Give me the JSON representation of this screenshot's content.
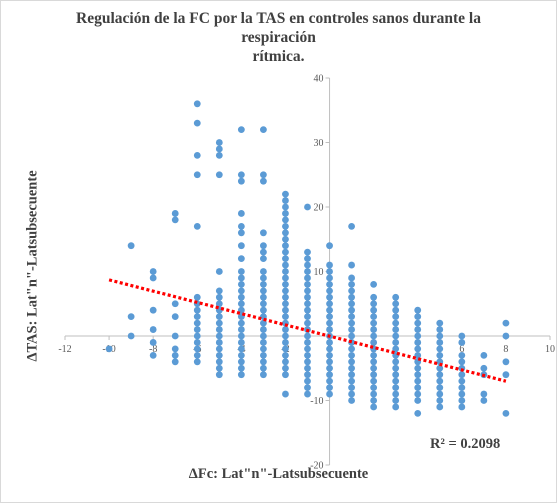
{
  "chart_data": {
    "type": "scatter",
    "title_line1": "Regulación de la  FC por la TAS en controles sanos durante la respiración",
    "title_line2": "rítmica.",
    "xlabel": "ΔFc: Lat\"n\"-Latsubsecuente",
    "ylabel": "ΔTAS:  Lat\"n\"-Latsubsecuente",
    "xlim": [
      -12,
      10
    ],
    "ylim": [
      -20,
      40
    ],
    "x_ticks": [
      "-12",
      "-10",
      "-8",
      "-6",
      "-4",
      "-2",
      "0",
      "2",
      "4",
      "6",
      "8",
      "10"
    ],
    "y_ticks": [
      "-20",
      "-10",
      "0",
      "10",
      "20",
      "30",
      "40"
    ],
    "grid": false,
    "marker_color": "#5b9bd5",
    "trendline": {
      "type": "linear",
      "color": "#ff0000",
      "style": "dotted",
      "x_range": [
        -10,
        8
      ],
      "y_at_start": 8.7,
      "y_at_end": -7.0
    },
    "r_squared_label": "R² = 0.2098",
    "columns": [
      {
        "x": -10,
        "ys": [
          -2
        ]
      },
      {
        "x": -9,
        "ys": [
          14,
          3,
          0
        ]
      },
      {
        "x": -8,
        "ys": [
          10,
          9,
          4,
          1,
          -1,
          -3
        ]
      },
      {
        "x": -7,
        "ys": [
          19,
          18,
          5,
          3,
          0,
          -2,
          -3,
          -4
        ]
      },
      {
        "x": -6,
        "ys": [
          36,
          33,
          28,
          25,
          17,
          6,
          5,
          4,
          3,
          2,
          1,
          0,
          -1,
          -2,
          -3,
          -4
        ]
      },
      {
        "x": -5,
        "ys": [
          30,
          29,
          28,
          25,
          10,
          7,
          6,
          5,
          4,
          3,
          2,
          1,
          0,
          -1,
          -2,
          -3,
          -4,
          -5,
          -6
        ]
      },
      {
        "x": -4,
        "ys": [
          32,
          25,
          24,
          19,
          17,
          16,
          14,
          12,
          10,
          9,
          8,
          7,
          6,
          5,
          4,
          3,
          2,
          1,
          0,
          -1,
          -2,
          -3,
          -4,
          -5,
          -6
        ]
      },
      {
        "x": -3,
        "ys": [
          32,
          25,
          24,
          16,
          14,
          13,
          12,
          10,
          9,
          8,
          7,
          6,
          5,
          4,
          3,
          2,
          1,
          0,
          -1,
          -2,
          -3,
          -4,
          -5,
          -6
        ]
      },
      {
        "x": -2,
        "ys": [
          22,
          21,
          20,
          19,
          18,
          17,
          16,
          15,
          14,
          13,
          12,
          11,
          10,
          9,
          8,
          7,
          6,
          5,
          4,
          3,
          2,
          1,
          0,
          -1,
          -2,
          -3,
          -4,
          -5,
          -6,
          -9
        ]
      },
      {
        "x": -1,
        "ys": [
          20,
          13,
          12,
          11,
          10,
          9,
          8,
          7,
          6,
          5,
          4,
          3,
          2,
          1,
          0,
          -1,
          -2,
          -3,
          -4,
          -5,
          -6,
          -7,
          -8,
          -9
        ]
      },
      {
        "x": 0,
        "ys": [
          14,
          11,
          10,
          9,
          8,
          7,
          6,
          5,
          4,
          3,
          2,
          1,
          0,
          -1,
          -2,
          -3,
          -4,
          -5,
          -6,
          -7,
          -8,
          -9
        ]
      },
      {
        "x": 1,
        "ys": [
          17,
          11,
          9,
          8,
          7,
          6,
          5,
          4,
          3,
          2,
          1,
          0,
          -1,
          -2,
          -3,
          -4,
          -5,
          -6,
          -7,
          -8,
          -9,
          -10
        ]
      },
      {
        "x": 2,
        "ys": [
          8,
          6,
          5,
          4,
          3,
          2,
          1,
          0,
          -1,
          -2,
          -3,
          -4,
          -5,
          -6,
          -7,
          -8,
          -9,
          -10,
          -11
        ]
      },
      {
        "x": 3,
        "ys": [
          6,
          5,
          4,
          3,
          2,
          1,
          0,
          -1,
          -2,
          -3,
          -4,
          -5,
          -6,
          -7,
          -8,
          -9,
          -10,
          -11
        ]
      },
      {
        "x": 4,
        "ys": [
          4,
          3,
          2,
          1,
          0,
          -1,
          -2,
          -3,
          -4,
          -5,
          -6,
          -7,
          -8,
          -9,
          -10,
          -12
        ]
      },
      {
        "x": 5,
        "ys": [
          2,
          1,
          0,
          -1,
          -2,
          -3,
          -4,
          -5,
          -6,
          -7,
          -8,
          -9,
          -10,
          -11
        ]
      },
      {
        "x": 6,
        "ys": [
          0,
          -1,
          -3,
          -4,
          -5,
          -6,
          -7,
          -8,
          -9,
          -10,
          -11
        ]
      },
      {
        "x": 7,
        "ys": [
          -3,
          -5,
          -6,
          -9,
          -10
        ]
      },
      {
        "x": 8,
        "ys": [
          2,
          0,
          -4,
          -6,
          -12
        ]
      }
    ]
  }
}
